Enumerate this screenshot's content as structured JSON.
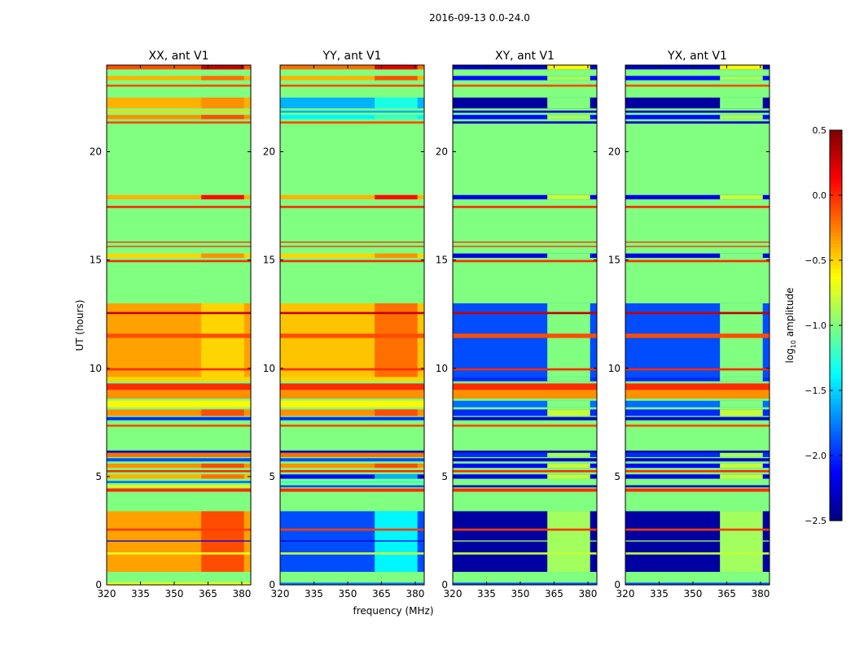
{
  "chart_data": {
    "type": "heatmap",
    "title": "2016-09-13 0.0-24.0",
    "xlabel": "frequency (MHz)",
    "ylabel": "UT (hours)",
    "xlim": [
      320,
      384
    ],
    "ylim": [
      0,
      24
    ],
    "xticks": [
      320,
      335,
      350,
      365,
      380
    ],
    "yticks": [
      0,
      5,
      10,
      15,
      20
    ],
    "hi_band_mhz": [
      362,
      381
    ],
    "background_value": -1.0,
    "colorbar": {
      "label_main": "log",
      "label_sub": "10",
      "label_rest": " amplitude",
      "colormap": "jet",
      "range": [
        -2.5,
        0.5
      ],
      "ticks": [
        "0.5",
        "0.0",
        "−0.5",
        "−1.0",
        "−1.5",
        "−2.0",
        "−2.5"
      ],
      "tick_values": [
        0.5,
        0.0,
        -0.5,
        -1.0,
        -1.5,
        -2.0,
        -2.5
      ]
    },
    "panels": [
      {
        "title": "XX, ant V1",
        "bands": [
          [
            0,
            0.1,
            -0.6,
            -0.6
          ],
          [
            0.6,
            3.4,
            -0.35,
            -0.1
          ],
          [
            1.4,
            1.5,
            -0.7,
            -0.7
          ],
          [
            2.0,
            2.05,
            -2.2,
            -2.2
          ],
          [
            2.5,
            2.6,
            -0.05,
            -0.05
          ],
          [
            4.3,
            4.45,
            0,
            0
          ],
          [
            4.5,
            4.6,
            -0.6,
            -0.6
          ],
          [
            4.7,
            4.8,
            -1.8,
            -1.8
          ],
          [
            4.9,
            5.1,
            -0.4,
            -0.2
          ],
          [
            5.2,
            5.3,
            0,
            0
          ],
          [
            5.4,
            5.6,
            -0.3,
            -0.1
          ],
          [
            5.7,
            5.85,
            -1.9,
            -1.9
          ],
          [
            5.9,
            6.1,
            -0.2,
            -0.2
          ],
          [
            6.1,
            6.2,
            -2.3,
            -2.3
          ],
          [
            7.3,
            7.4,
            -0.1,
            -0.1
          ],
          [
            7.6,
            7.75,
            -2.0,
            -2.0
          ],
          [
            7.8,
            8.1,
            -0.3,
            -0.1
          ],
          [
            8.2,
            8.5,
            -0.6,
            -0.6
          ],
          [
            8.6,
            9.0,
            -0.3,
            -0.3
          ],
          [
            9.0,
            9.3,
            0,
            0
          ],
          [
            9.4,
            9.6,
            -0.5,
            -0.5
          ],
          [
            9.6,
            13.0,
            -0.35,
            -0.5
          ],
          [
            9.9,
            10.0,
            0,
            0
          ],
          [
            11.4,
            11.6,
            -0.1,
            -0.1
          ],
          [
            12.5,
            12.6,
            0.3,
            0.3
          ],
          [
            14.9,
            15.0,
            0,
            0
          ],
          [
            15.1,
            15.3,
            -0.5,
            -0.3
          ],
          [
            15.6,
            15.65,
            0,
            0
          ],
          [
            15.8,
            15.85,
            0,
            0
          ],
          [
            17.4,
            17.5,
            0,
            0
          ],
          [
            17.8,
            18.0,
            -0.4,
            0.1
          ],
          [
            21.3,
            21.4,
            -0.1,
            -0.1
          ],
          [
            21.5,
            21.7,
            -0.3,
            -0.1
          ],
          [
            21.8,
            21.9,
            -0.5,
            -0.5
          ],
          [
            22.0,
            22.5,
            -0.4,
            -0.3
          ],
          [
            23.0,
            23.1,
            -0.1,
            -0.1
          ],
          [
            23.3,
            23.5,
            -0.4,
            -0.2
          ],
          [
            23.8,
            24,
            -0.1,
            0.3
          ]
        ]
      },
      {
        "title": "YY, ant V1",
        "bands": [
          [
            0,
            0.1,
            -1.8,
            -1.8
          ],
          [
            0.6,
            3.4,
            -1.9,
            -1.4
          ],
          [
            1.4,
            1.5,
            -0.8,
            -0.8
          ],
          [
            2.0,
            2.05,
            -2.2,
            -2.2
          ],
          [
            2.5,
            2.6,
            -0.05,
            -0.05
          ],
          [
            4.3,
            4.45,
            0,
            0
          ],
          [
            4.5,
            4.6,
            -1.9,
            -1.9
          ],
          [
            4.7,
            4.8,
            -1.2,
            -1.2
          ],
          [
            4.9,
            5.1,
            -2.1,
            -1.6
          ],
          [
            5.2,
            5.3,
            0,
            0
          ],
          [
            5.4,
            5.6,
            -0.3,
            -0.1
          ],
          [
            5.7,
            5.85,
            -1.9,
            -1.9
          ],
          [
            5.9,
            6.1,
            -0.2,
            -0.2
          ],
          [
            6.1,
            6.2,
            -2.3,
            -2.3
          ],
          [
            7.3,
            7.4,
            -0.1,
            -0.1
          ],
          [
            7.6,
            7.75,
            -2.0,
            -2.0
          ],
          [
            7.8,
            8.1,
            -0.3,
            -0.1
          ],
          [
            8.2,
            8.5,
            -0.6,
            -0.6
          ],
          [
            8.6,
            9.0,
            -0.3,
            -0.3
          ],
          [
            9.0,
            9.3,
            0,
            0
          ],
          [
            9.4,
            9.6,
            -0.5,
            -0.5
          ],
          [
            9.6,
            13.0,
            -0.45,
            -0.2
          ],
          [
            9.9,
            10.0,
            0,
            0
          ],
          [
            11.4,
            11.6,
            -0.1,
            -0.1
          ],
          [
            12.5,
            12.6,
            0.3,
            0.3
          ],
          [
            14.9,
            15.0,
            0,
            0
          ],
          [
            15.1,
            15.3,
            -0.5,
            -0.3
          ],
          [
            15.6,
            15.65,
            0,
            0
          ],
          [
            15.8,
            15.85,
            0,
            0
          ],
          [
            17.4,
            17.5,
            0,
            0
          ],
          [
            17.8,
            18.0,
            -0.4,
            0.1
          ],
          [
            21.3,
            21.4,
            -0.1,
            -0.1
          ],
          [
            21.5,
            21.7,
            -1.4,
            -1.2
          ],
          [
            21.8,
            21.9,
            -1.6,
            -1.6
          ],
          [
            22.0,
            22.5,
            -1.6,
            -1.3
          ],
          [
            23.0,
            23.1,
            -0.1,
            -0.1
          ],
          [
            23.3,
            23.5,
            -0.4,
            -0.1
          ],
          [
            23.8,
            24,
            -0.2,
            0.2
          ]
        ]
      },
      {
        "title": "XY, ant V1",
        "bands": [
          [
            0,
            0.1,
            -1.9,
            -1.9
          ],
          [
            0.6,
            3.4,
            -2.4,
            -0.9
          ],
          [
            1.4,
            1.5,
            -0.8,
            -0.8
          ],
          [
            2.0,
            2.05,
            -0.9,
            -0.9
          ],
          [
            2.5,
            2.6,
            -0.05,
            -0.05
          ],
          [
            4.3,
            4.45,
            0,
            0
          ],
          [
            4.5,
            4.6,
            -2.3,
            -2.3
          ],
          [
            4.7,
            4.8,
            -1.0,
            -1.0
          ],
          [
            4.9,
            5.1,
            -2.2,
            -0.8
          ],
          [
            5.2,
            5.3,
            0,
            0
          ],
          [
            5.4,
            5.6,
            -2.1,
            -0.8
          ],
          [
            5.7,
            5.85,
            -2.3,
            -2.3
          ],
          [
            5.9,
            6.1,
            -2.0,
            -0.9
          ],
          [
            6.1,
            6.2,
            -2.4,
            -2.4
          ],
          [
            7.3,
            7.4,
            -0.1,
            -0.1
          ],
          [
            7.6,
            7.75,
            -2.3,
            -2.3
          ],
          [
            7.8,
            8.1,
            -2.0,
            -0.8
          ],
          [
            8.2,
            8.5,
            -1.8,
            -1.0
          ],
          [
            8.6,
            9.0,
            -0.3,
            -0.3
          ],
          [
            9.0,
            9.3,
            0,
            0
          ],
          [
            9.4,
            9.6,
            -2.0,
            -1.0
          ],
          [
            9.6,
            13.0,
            -1.9,
            -1.0
          ],
          [
            9.9,
            10.0,
            0,
            0
          ],
          [
            11.4,
            11.6,
            -0.1,
            -0.1
          ],
          [
            12.5,
            12.6,
            0.3,
            0.3
          ],
          [
            14.9,
            15.0,
            0,
            0
          ],
          [
            15.1,
            15.3,
            -2.2,
            -1.0
          ],
          [
            15.6,
            15.65,
            0,
            0
          ],
          [
            15.8,
            15.85,
            0,
            0
          ],
          [
            17.4,
            17.5,
            0,
            0
          ],
          [
            17.8,
            18.0,
            -2.2,
            -0.8
          ],
          [
            21.3,
            21.4,
            -2.3,
            -2.3
          ],
          [
            21.5,
            21.7,
            -2.1,
            -0.9
          ],
          [
            21.8,
            21.9,
            -2.3,
            -2.3
          ],
          [
            22.0,
            22.5,
            -2.4,
            -1.0
          ],
          [
            23.0,
            23.1,
            -0.1,
            -0.1
          ],
          [
            23.3,
            23.5,
            -2.1,
            -0.9
          ],
          [
            23.8,
            24,
            -2.3,
            -0.6
          ]
        ]
      },
      {
        "title": "YX, ant V1",
        "bands": [
          [
            0,
            0.1,
            -1.9,
            -1.9
          ],
          [
            0.6,
            3.4,
            -2.4,
            -0.9
          ],
          [
            1.4,
            1.5,
            -0.8,
            -0.8
          ],
          [
            2.0,
            2.05,
            -0.9,
            -0.9
          ],
          [
            2.5,
            2.6,
            -0.05,
            -0.05
          ],
          [
            4.3,
            4.45,
            0,
            0
          ],
          [
            4.5,
            4.6,
            -2.3,
            -2.3
          ],
          [
            4.7,
            4.8,
            -1.0,
            -1.0
          ],
          [
            4.9,
            5.1,
            -2.2,
            -0.8
          ],
          [
            5.2,
            5.3,
            0,
            0
          ],
          [
            5.4,
            5.6,
            -2.1,
            -0.8
          ],
          [
            5.7,
            5.85,
            -2.3,
            -2.3
          ],
          [
            5.9,
            6.1,
            -2.0,
            -0.9
          ],
          [
            6.1,
            6.2,
            -2.4,
            -2.4
          ],
          [
            7.3,
            7.4,
            -0.1,
            -0.1
          ],
          [
            7.6,
            7.75,
            -2.3,
            -2.3
          ],
          [
            7.8,
            8.1,
            -2.0,
            -0.8
          ],
          [
            8.2,
            8.5,
            -1.8,
            -1.0
          ],
          [
            8.6,
            9.0,
            -0.3,
            -0.3
          ],
          [
            9.0,
            9.3,
            0,
            0
          ],
          [
            9.4,
            9.6,
            -2.0,
            -1.0
          ],
          [
            9.6,
            13.0,
            -1.9,
            -1.0
          ],
          [
            9.9,
            10.0,
            0,
            0
          ],
          [
            11.4,
            11.6,
            -0.1,
            -0.1
          ],
          [
            12.5,
            12.6,
            0.3,
            0.3
          ],
          [
            14.9,
            15.0,
            0,
            0
          ],
          [
            15.1,
            15.3,
            -2.2,
            -1.0
          ],
          [
            15.6,
            15.65,
            0,
            0
          ],
          [
            15.8,
            15.85,
            0,
            0
          ],
          [
            17.4,
            17.5,
            0,
            0
          ],
          [
            17.8,
            18.0,
            -2.2,
            -0.8
          ],
          [
            21.3,
            21.4,
            -2.3,
            -2.3
          ],
          [
            21.5,
            21.7,
            -2.1,
            -0.9
          ],
          [
            21.8,
            21.9,
            -2.3,
            -2.3
          ],
          [
            22.0,
            22.5,
            -2.4,
            -1.0
          ],
          [
            23.0,
            23.1,
            -0.1,
            -0.1
          ],
          [
            23.3,
            23.5,
            -2.1,
            -0.9
          ],
          [
            23.8,
            24,
            -2.3,
            -0.6
          ]
        ]
      }
    ]
  }
}
